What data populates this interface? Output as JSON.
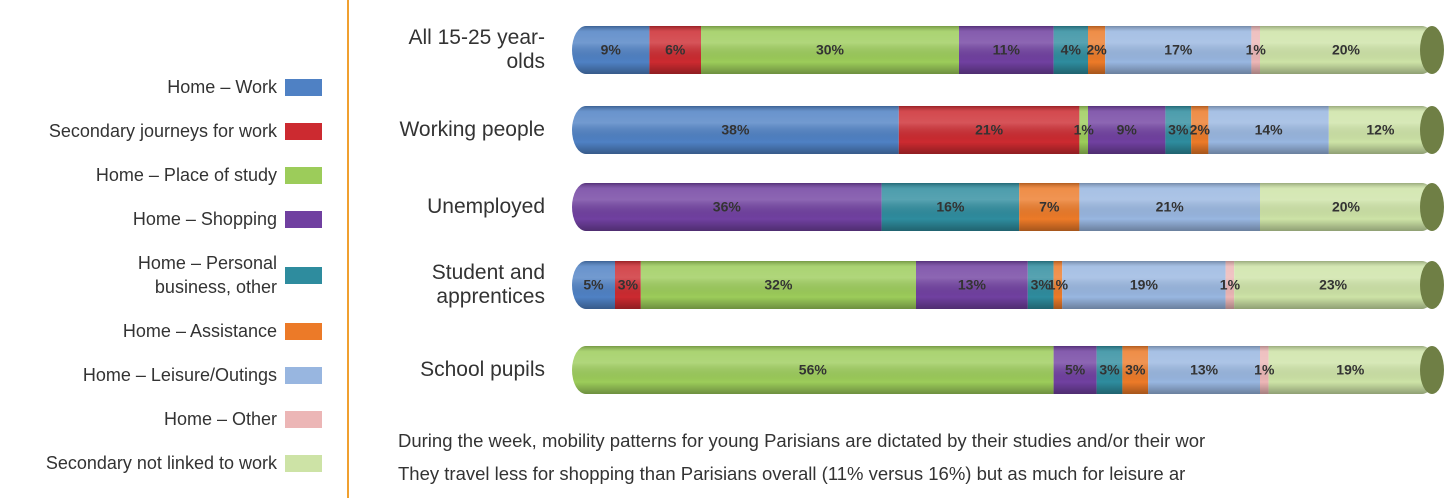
{
  "chart_data": {
    "type": "stacked-bar",
    "orientation": "horizontal",
    "categories": [
      "All 15-25 year-olds",
      "Working people",
      "Unemployed",
      "Student and apprentices",
      "School pupils"
    ],
    "xlim": [
      0,
      100
    ],
    "series": [
      {
        "name": "Home – Work",
        "color": "#4f81c4",
        "values": [
          9,
          38,
          null,
          5,
          null
        ],
        "value_labels": [
          "9%",
          "38%",
          null,
          "5%",
          null
        ]
      },
      {
        "name": "Secondary journeys for work",
        "color": "#cc2a30",
        "values": [
          6,
          21,
          null,
          3,
          null
        ],
        "value_labels": [
          "6%",
          "21%",
          null,
          "3%",
          null
        ]
      },
      {
        "name": "Home – Place of  study",
        "color": "#9ccc5a",
        "values": [
          30,
          1,
          null,
          32,
          56
        ],
        "value_labels": [
          "30%",
          "1%",
          null,
          "32%",
          "56%"
        ]
      },
      {
        "name": "Home – Shopping",
        "color": "#7040a0",
        "values": [
          11,
          9,
          36,
          13,
          5
        ],
        "value_labels": [
          "11%",
          "9%",
          "36%",
          "13%",
          "5%"
        ]
      },
      {
        "name": "Home – Personal business, other",
        "color": "#2e8c9e",
        "values": [
          4,
          3,
          16,
          3,
          3
        ],
        "value_labels": [
          "4%",
          "3%",
          "16%",
          "3%",
          "3%"
        ]
      },
      {
        "name": "Home – Assistance",
        "color": "#ec7a28",
        "values": [
          2,
          2,
          7,
          1,
          3
        ],
        "value_labels": [
          "2%",
          "2%",
          "7%",
          "1%",
          "3%"
        ]
      },
      {
        "name": "Home – Leisure/Outings",
        "color": "#98b6e0",
        "values": [
          17,
          14,
          21,
          19,
          13
        ],
        "value_labels": [
          "17%",
          "14%",
          "21%",
          "19%",
          "13%"
        ]
      },
      {
        "name": "Home – Other",
        "color": "#ecb6b6",
        "values": [
          1,
          null,
          null,
          1,
          1
        ],
        "value_labels": [
          "1%",
          null,
          null,
          "1%",
          "1%"
        ]
      },
      {
        "name": "Secondary not linked to work",
        "color": "#cde3a6",
        "values": [
          20,
          12,
          20,
          23,
          19
        ],
        "value_labels": [
          "20%",
          "12%",
          "20%",
          "23%",
          "19%"
        ]
      }
    ],
    "text": [
      "During the week, mobility patterns for young Parisians are dictated by their studies and/or their wor",
      "They travel less for shopping than Parisians overall (11% versus 16%) but as much for leisure ar"
    ]
  }
}
